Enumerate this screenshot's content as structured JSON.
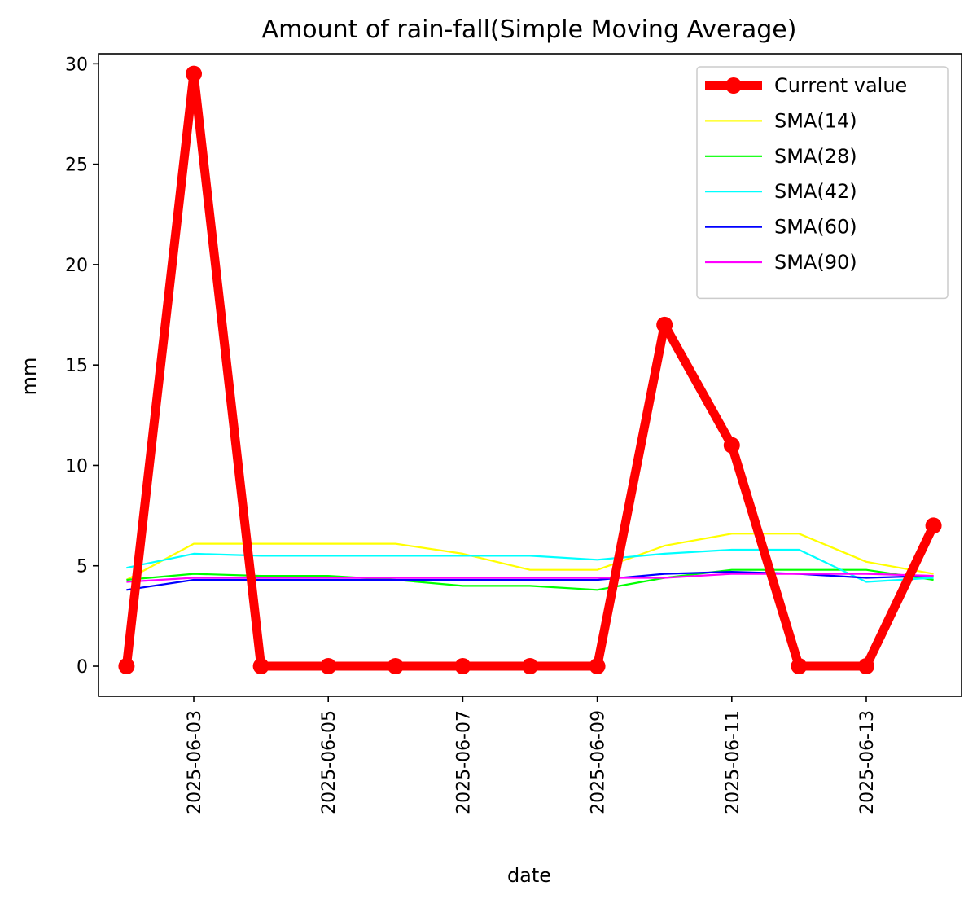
{
  "chart_data": {
    "type": "line",
    "title": "Amount of rain-fall(Simple Moving Average)",
    "xlabel": "date",
    "ylabel": "mm",
    "x": [
      "2025-06-02",
      "2025-06-03",
      "2025-06-04",
      "2025-06-05",
      "2025-06-06",
      "2025-06-07",
      "2025-06-08",
      "2025-06-09",
      "2025-06-10",
      "2025-06-11",
      "2025-06-12",
      "2025-06-13",
      "2025-06-14"
    ],
    "xlim": [
      "2025-06-01T14:00",
      "2025-06-14T10:00"
    ],
    "xticks": [
      "2025-06-03",
      "2025-06-05",
      "2025-06-07",
      "2025-06-09",
      "2025-06-11",
      "2025-06-13"
    ],
    "ylim": [
      -1.5,
      30.5
    ],
    "yticks": [
      0,
      5,
      10,
      15,
      20,
      25,
      30
    ],
    "grid": false,
    "legend_position": "top-right",
    "series": [
      {
        "name": "Current value",
        "color": "#ff0000",
        "marker": "circle",
        "width": "thick",
        "values": [
          0,
          29.5,
          0,
          0,
          0,
          0,
          0,
          0,
          17,
          11,
          0,
          0,
          7
        ]
      },
      {
        "name": "SMA(14)",
        "color": "#ffff00",
        "values": [
          4.3,
          6.1,
          6.1,
          6.1,
          6.1,
          5.6,
          4.8,
          4.8,
          6.0,
          6.6,
          6.6,
          5.2,
          4.6
        ]
      },
      {
        "name": "SMA(28)",
        "color": "#00ff00",
        "values": [
          4.3,
          4.6,
          4.5,
          4.5,
          4.3,
          4.0,
          4.0,
          3.8,
          4.4,
          4.8,
          4.8,
          4.8,
          4.3
        ]
      },
      {
        "name": "SMA(42)",
        "color": "#00ffff",
        "values": [
          4.9,
          5.6,
          5.5,
          5.5,
          5.5,
          5.5,
          5.5,
          5.3,
          5.6,
          5.8,
          5.8,
          4.2,
          4.4
        ]
      },
      {
        "name": "SMA(60)",
        "color": "#0000ff",
        "values": [
          3.8,
          4.3,
          4.3,
          4.3,
          4.3,
          4.3,
          4.3,
          4.3,
          4.6,
          4.7,
          4.6,
          4.4,
          4.5
        ]
      },
      {
        "name": "SMA(90)",
        "color": "#ff00ff",
        "values": [
          4.2,
          4.4,
          4.4,
          4.4,
          4.4,
          4.4,
          4.4,
          4.4,
          4.4,
          4.6,
          4.6,
          4.6,
          4.5
        ]
      }
    ]
  }
}
